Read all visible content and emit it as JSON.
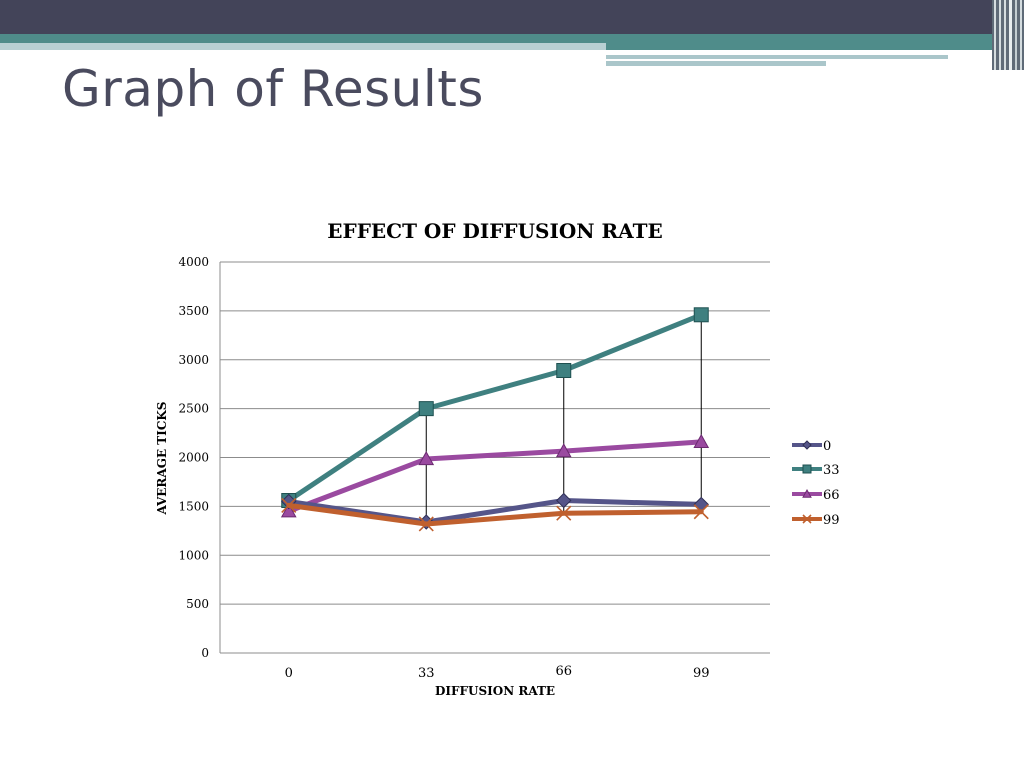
{
  "slide": {
    "title": "Graph of Results"
  },
  "colors": {
    "topbar": "#434459",
    "accent_teal": "#4f8c8a",
    "title_text": "#4a4b5e"
  },
  "chart_data": {
    "type": "line",
    "title": "EFFECT OF DIFFUSION RATE",
    "xlabel": "DIFFUSION RATE",
    "ylabel": "AVERAGE TICKS",
    "categories": [
      "0",
      "33",
      "66",
      "99"
    ],
    "ylim": [
      0,
      4000
    ],
    "yticks": [
      "0",
      "500",
      "1000",
      "1500",
      "2000",
      "2500",
      "3000",
      "3500",
      "4000"
    ],
    "grid": true,
    "legend": "right",
    "series": [
      {
        "name": "0",
        "values": [
          1550,
          1340,
          1560,
          1520
        ],
        "color": "#555589",
        "marker": "diamond"
      },
      {
        "name": "33",
        "values": [
          1560,
          2500,
          2890,
          3460
        ],
        "color": "#3f8080",
        "marker": "square"
      },
      {
        "name": "66",
        "values": [
          1450,
          1985,
          2065,
          2160
        ],
        "color": "#9a4aa0",
        "marker": "triangle"
      },
      {
        "name": "99",
        "values": [
          1510,
          1320,
          1430,
          1445
        ],
        "color": "#c0602e",
        "marker": "x"
      }
    ],
    "error_lines": [
      {
        "category": "0",
        "low": 1450,
        "high": 1560
      },
      {
        "category": "33",
        "low": 1320,
        "high": 2500
      },
      {
        "category": "66",
        "low": 1430,
        "high": 2890
      },
      {
        "category": "99",
        "low": 1445,
        "high": 3460
      }
    ]
  }
}
